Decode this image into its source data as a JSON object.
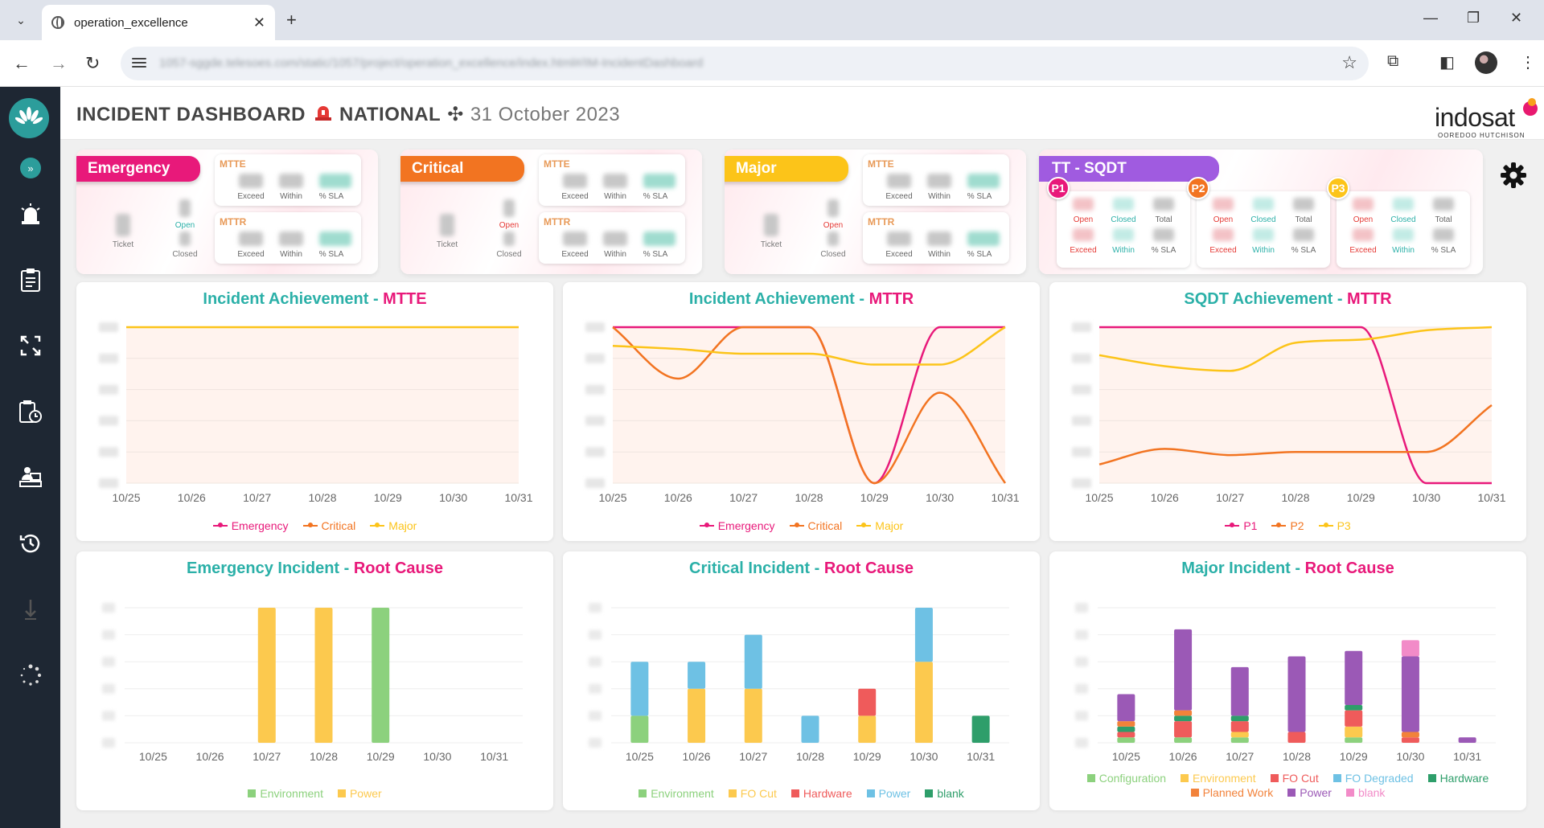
{
  "browser": {
    "tab_title": "operation_excellence",
    "url": "1057-sggde.telesoes.com/static/1057/project/operation_excellence/index.html#/IM-IncidentDashboard"
  },
  "header": {
    "title": "INCIDENT DASHBOARD",
    "region": "NATIONAL",
    "separator": "✣",
    "date": "31 October 2023",
    "brand": "indosat",
    "brand_sub": "OOREDOO HUTCHISON"
  },
  "summary": {
    "cards": [
      {
        "label": "Emergency",
        "color": "#e8197a"
      },
      {
        "label": "Critical",
        "color": "#f27421"
      },
      {
        "label": "Major",
        "color": "#fcc419"
      }
    ],
    "ticket_label": "Ticket",
    "open_label": "Open",
    "closed_label": "Closed",
    "mtte_label": "MTTE",
    "mttr_label": "MTTR",
    "metric_cols": [
      "Exceed",
      "Within",
      "% SLA"
    ],
    "tt": {
      "label": "TT - SQDT",
      "priorities": [
        {
          "name": "P1",
          "color": "#e8197a"
        },
        {
          "name": "P2",
          "color": "#f27421"
        },
        {
          "name": "P3",
          "color": "#fcc419"
        }
      ],
      "top_cols": [
        "Open",
        "Closed",
        "Total"
      ],
      "bottom_cols": [
        "Exceed",
        "Within",
        "% SLA"
      ]
    }
  },
  "colors": {
    "emergency": "#e8197a",
    "critical": "#f27421",
    "major": "#fcc419",
    "teal": "#2bb0a8"
  },
  "chart_data": [
    {
      "id": "mtte",
      "type": "line",
      "title_a": "Incident Achievement - ",
      "title_b": "MTTE",
      "categories": [
        "10/25",
        "10/26",
        "10/27",
        "10/28",
        "10/29",
        "10/30",
        "10/31"
      ],
      "ylim": [
        0,
        100
      ],
      "series": [
        {
          "name": "Emergency",
          "color": "#e8197a",
          "values": [
            null,
            null,
            null,
            null,
            null,
            null,
            null
          ]
        },
        {
          "name": "Critical",
          "color": "#f27421",
          "values": [
            null,
            null,
            null,
            null,
            null,
            null,
            null
          ]
        },
        {
          "name": "Major",
          "color": "#fcc419",
          "values": [
            100,
            100,
            100,
            100,
            100,
            100,
            100
          ]
        }
      ]
    },
    {
      "id": "mttr",
      "type": "line",
      "title_a": "Incident Achievement - ",
      "title_b": "MTTR",
      "categories": [
        "10/25",
        "10/26",
        "10/27",
        "10/28",
        "10/29",
        "10/30",
        "10/31"
      ],
      "ylim": [
        0,
        100
      ],
      "series": [
        {
          "name": "Emergency",
          "color": "#e8197a",
          "values": [
            100,
            100,
            100,
            100,
            0,
            100,
            100
          ]
        },
        {
          "name": "Critical",
          "color": "#f27421",
          "values": [
            100,
            67,
            100,
            100,
            0,
            58,
            0
          ]
        },
        {
          "name": "Major",
          "color": "#fcc419",
          "values": [
            88,
            86,
            83,
            83,
            76,
            76,
            100
          ]
        }
      ]
    },
    {
      "id": "sqdt",
      "type": "line",
      "title_a": "SQDT Achievement - ",
      "title_b": "MTTR",
      "categories": [
        "10/25",
        "10/26",
        "10/27",
        "10/28",
        "10/29",
        "10/30",
        "10/31"
      ],
      "ylim": [
        0,
        100
      ],
      "series": [
        {
          "name": "P1",
          "color": "#e8197a",
          "values": [
            100,
            100,
            100,
            100,
            100,
            0,
            0
          ]
        },
        {
          "name": "P2",
          "color": "#f27421",
          "values": [
            12,
            22,
            18,
            20,
            20,
            20,
            50
          ]
        },
        {
          "name": "P3",
          "color": "#fcc419",
          "values": [
            82,
            75,
            72,
            90,
            92,
            98,
            100
          ]
        }
      ]
    },
    {
      "id": "emergency_rc",
      "type": "bar",
      "stacked": true,
      "title_a": "Emergency Incident - ",
      "title_b": "Root Cause",
      "categories": [
        "10/25",
        "10/26",
        "10/27",
        "10/28",
        "10/29",
        "10/30",
        "10/31"
      ],
      "ylim": [
        0,
        1
      ],
      "series": [
        {
          "name": "Environment",
          "color": "#8cd17d",
          "values": [
            0,
            0,
            0,
            0,
            1,
            0,
            0
          ]
        },
        {
          "name": "Power",
          "color": "#fcc94e",
          "values": [
            0,
            0,
            1,
            1,
            0,
            0,
            0
          ]
        }
      ]
    },
    {
      "id": "critical_rc",
      "type": "bar",
      "stacked": true,
      "title_a": "Critical Incident - ",
      "title_b": "Root Cause",
      "categories": [
        "10/25",
        "10/26",
        "10/27",
        "10/28",
        "10/29",
        "10/30",
        "10/31"
      ],
      "ylim": [
        0,
        5
      ],
      "series": [
        {
          "name": "Environment",
          "color": "#8cd17d",
          "values": [
            1,
            0,
            0,
            0,
            0,
            0,
            0
          ]
        },
        {
          "name": "FO Cut",
          "color": "#fcc94e",
          "values": [
            0,
            2,
            2,
            0,
            1,
            3,
            0
          ]
        },
        {
          "name": "Hardware",
          "color": "#ef5b5b",
          "values": [
            0,
            0,
            0,
            0,
            1,
            0,
            0
          ]
        },
        {
          "name": "Power",
          "color": "#6ec1e4",
          "values": [
            2,
            1,
            2,
            1,
            0,
            2,
            0
          ]
        },
        {
          "name": "blank",
          "color": "#2e9e6a",
          "values": [
            0,
            0,
            0,
            0,
            0,
            0,
            1
          ]
        }
      ]
    },
    {
      "id": "major_rc",
      "type": "bar",
      "stacked": true,
      "title_a": "Major Incident - ",
      "title_b": "Root Cause",
      "categories": [
        "10/25",
        "10/26",
        "10/27",
        "10/28",
        "10/29",
        "10/30",
        "10/31"
      ],
      "ylim": [
        0,
        25
      ],
      "series": [
        {
          "name": "Configuration",
          "color": "#8cd17d",
          "values": [
            1,
            1,
            1,
            0,
            1,
            0,
            0
          ]
        },
        {
          "name": "Environment",
          "color": "#fcc94e",
          "values": [
            0,
            0,
            1,
            0,
            2,
            0,
            0
          ]
        },
        {
          "name": "FO Cut",
          "color": "#ef5b5b",
          "values": [
            1,
            3,
            2,
            2,
            3,
            1,
            0
          ]
        },
        {
          "name": "FO Degraded",
          "color": "#6ec1e4",
          "values": [
            0,
            0,
            0,
            0,
            0,
            0,
            0
          ]
        },
        {
          "name": "Hardware",
          "color": "#2e9e6a",
          "values": [
            1,
            1,
            1,
            0,
            1,
            0,
            0
          ]
        },
        {
          "name": "Planned Work",
          "color": "#f2823a",
          "values": [
            1,
            1,
            0,
            0,
            0,
            1,
            0
          ]
        },
        {
          "name": "Power",
          "color": "#9b59b6",
          "values": [
            5,
            15,
            9,
            14,
            10,
            14,
            1
          ]
        },
        {
          "name": "blank",
          "color": "#f28bc8",
          "values": [
            0,
            0,
            0,
            0,
            0,
            3,
            0
          ]
        }
      ]
    }
  ]
}
